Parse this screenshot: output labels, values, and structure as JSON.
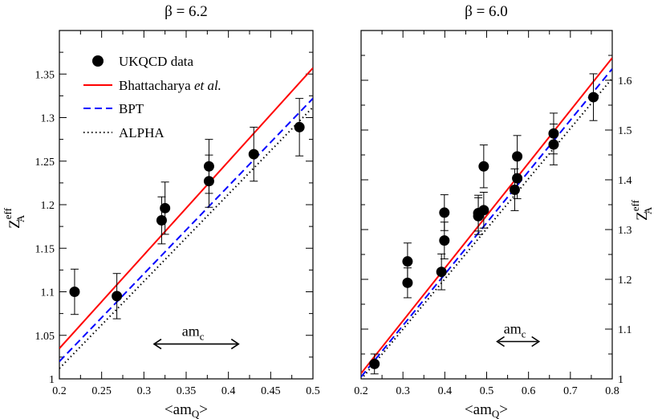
{
  "chart_data": [
    {
      "type": "scatter",
      "title": "β = 6.2",
      "xlabel": "<am",
      "xlabel_sub": "Q",
      "xlabel_close": ">",
      "ylabel": "Z",
      "ylabel_sup": "eff",
      "ylabel_sub": "A",
      "xlim": [
        0.2,
        0.5
      ],
      "ylim": [
        1.0,
        1.4
      ],
      "x_ticks": [
        "0.2",
        "0.25",
        "0.3",
        "0.35",
        "0.4",
        "0.45",
        "0.5"
      ],
      "x_tick_values": [
        0.2,
        0.25,
        0.3,
        0.35,
        0.4,
        0.45,
        0.5
      ],
      "y_ticks": [
        "1",
        "1.05",
        "1.1",
        "1.15",
        "1.2",
        "1.25",
        "1.3",
        "1.35"
      ],
      "y_tick_values": [
        1.0,
        1.05,
        1.1,
        1.15,
        1.2,
        1.25,
        1.3,
        1.35
      ],
      "y_axis_side": "left",
      "legend_position": "top-left",
      "grid": false,
      "series": [
        {
          "name": "UKQCD data",
          "kind": "points-with-errors",
          "color": "#000000",
          "points": [
            {
              "x": 0.218,
              "y": 1.1,
              "err": 0.026
            },
            {
              "x": 0.268,
              "y": 1.095,
              "err": 0.026
            },
            {
              "x": 0.321,
              "y": 1.182,
              "err": 0.027
            },
            {
              "x": 0.325,
              "y": 1.196,
              "err": 0.03
            },
            {
              "x": 0.377,
              "y": 1.244,
              "err": 0.031
            },
            {
              "x": 0.377,
              "y": 1.227,
              "err": 0.03
            },
            {
              "x": 0.43,
              "y": 1.258,
              "err": 0.031
            },
            {
              "x": 0.484,
              "y": 1.289,
              "err": 0.033
            }
          ]
        },
        {
          "name": "Bhattacharya et al.",
          "kind": "line",
          "style": "solid",
          "color": "#ff0000",
          "x": [
            0.2,
            0.5
          ],
          "y": [
            1.035,
            1.357
          ]
        },
        {
          "name": "BPT",
          "kind": "line",
          "style": "dashed",
          "color": "#0000ff",
          "x": [
            0.2,
            0.5
          ],
          "y": [
            1.02,
            1.322
          ]
        },
        {
          "name": "ALPHA",
          "kind": "line",
          "style": "dotted",
          "color": "#000000",
          "x": [
            0.2,
            0.5
          ],
          "y": [
            1.012,
            1.312
          ]
        }
      ],
      "annotation": {
        "label": "am",
        "label_sub": "c",
        "x_from": 0.312,
        "x_to": 0.412,
        "y": 1.04
      }
    },
    {
      "type": "scatter",
      "title": "β = 6.0",
      "xlabel": "<am",
      "xlabel_sub": "Q",
      "xlabel_close": ">",
      "ylabel": "Z",
      "ylabel_sup": "eff",
      "ylabel_sub": "A",
      "xlim": [
        0.2,
        0.8
      ],
      "ylim": [
        1.0,
        1.7
      ],
      "x_ticks": [
        "0.2",
        "0.3",
        "0.4",
        "0.5",
        "0.6",
        "0.7",
        "0.8"
      ],
      "x_tick_values": [
        0.2,
        0.3,
        0.4,
        0.5,
        0.6,
        0.7,
        0.8
      ],
      "y_ticks": [
        "1",
        "1.1",
        "1.2",
        "1.3",
        "1.4",
        "1.5",
        "1.6"
      ],
      "y_tick_values": [
        1.0,
        1.1,
        1.2,
        1.3,
        1.4,
        1.5,
        1.6
      ],
      "y_axis_side": "right",
      "grid": false,
      "series": [
        {
          "name": "UKQCD data",
          "kind": "points-with-errors",
          "color": "#000000",
          "points": [
            {
              "x": 0.232,
              "y": 1.03,
              "err": 0.02
            },
            {
              "x": 0.311,
              "y": 1.236,
              "err": 0.037
            },
            {
              "x": 0.311,
              "y": 1.193,
              "err": 0.03
            },
            {
              "x": 0.392,
              "y": 1.215,
              "err": 0.036
            },
            {
              "x": 0.399,
              "y": 1.334,
              "err": 0.036
            },
            {
              "x": 0.399,
              "y": 1.278,
              "err": 0.037
            },
            {
              "x": 0.48,
              "y": 1.327,
              "err": 0.037
            },
            {
              "x": 0.48,
              "y": 1.333,
              "err": 0.036
            },
            {
              "x": 0.493,
              "y": 1.427,
              "err": 0.043
            },
            {
              "x": 0.493,
              "y": 1.339,
              "err": 0.036
            },
            {
              "x": 0.567,
              "y": 1.38,
              "err": 0.042
            },
            {
              "x": 0.573,
              "y": 1.447,
              "err": 0.042
            },
            {
              "x": 0.573,
              "y": 1.403,
              "err": 0.041
            },
            {
              "x": 0.66,
              "y": 1.493,
              "err": 0.041
            },
            {
              "x": 0.66,
              "y": 1.471,
              "err": 0.041
            },
            {
              "x": 0.755,
              "y": 1.566,
              "err": 0.047
            }
          ]
        },
        {
          "name": "Bhattacharya et al.",
          "kind": "line",
          "style": "solid",
          "color": "#ff0000",
          "x": [
            0.2,
            0.8
          ],
          "y": [
            1.011,
            1.645
          ]
        },
        {
          "name": "BPT",
          "kind": "line",
          "style": "dashed",
          "color": "#0000ff",
          "x": [
            0.2,
            0.8
          ],
          "y": [
            1.004,
            1.623
          ]
        },
        {
          "name": "ALPHA",
          "kind": "line",
          "style": "dotted",
          "color": "#000000",
          "x": [
            0.2,
            0.8
          ],
          "y": [
            0.999,
            1.604
          ]
        }
      ],
      "annotation": {
        "label": "am",
        "label_sub": "c",
        "x_from": 0.525,
        "x_to": 0.625,
        "y": 1.075
      }
    }
  ],
  "legend": {
    "items": [
      {
        "label": "UKQCD data",
        "emphasis": "",
        "marker": "circle"
      },
      {
        "label": "Bhattacharya ",
        "emphasis": "et al.",
        "marker": "solid"
      },
      {
        "label": "BPT",
        "emphasis": "",
        "marker": "dashed"
      },
      {
        "label": "ALPHA",
        "emphasis": "",
        "marker": "dotted"
      }
    ]
  }
}
